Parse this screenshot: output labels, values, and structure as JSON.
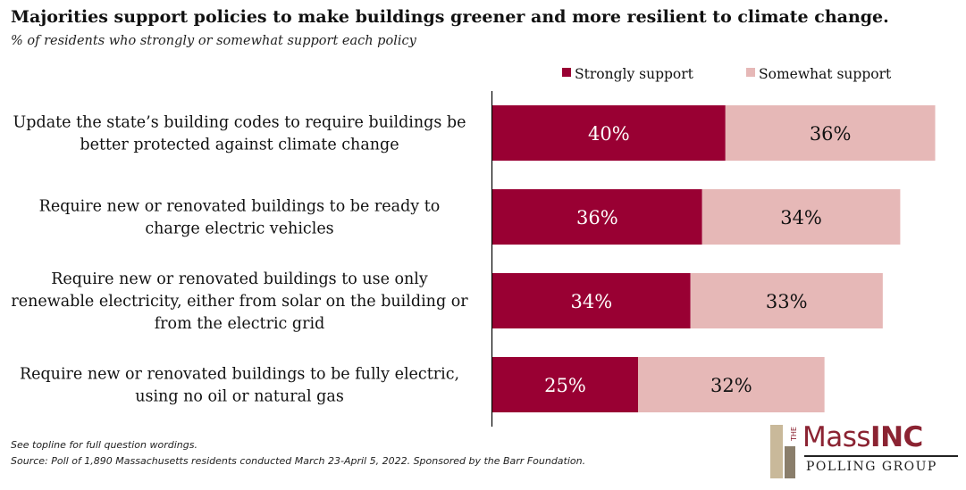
{
  "title": "Majorities support policies to make buildings greener and more resilient to climate change.",
  "subtitle": "% of residents who strongly or somewhat support each policy",
  "footnotes": [
    "See topline for full question wordings.",
    "Source: Poll of 1,890 Massachusetts residents conducted March 23-April 5, 2022. Sponsored by the Barr Foundation."
  ],
  "logo": {
    "the": "THE",
    "mass": "Mass",
    "inc": "INC",
    "polling": "POLLING GROUP"
  },
  "colors": {
    "strong": "#990033",
    "somewhat": "#e6b8b7",
    "axis": "#000000"
  },
  "chart_data": {
    "type": "bar",
    "orientation": "horizontal",
    "stacked": true,
    "title": "Majorities support policies to make buildings greener and more resilient to climate change.",
    "xlabel": "",
    "ylabel": "",
    "xlim": [
      0,
      80
    ],
    "legend_position": "top-right",
    "categories": [
      [
        "Update the state’s building codes to require buildings be",
        "better protected against climate change"
      ],
      [
        "Require new or renovated buildings to be ready to",
        "charge electric vehicles"
      ],
      [
        "Require new or renovated buildings to use only",
        "renewable electricity, either from solar on the building or",
        "from the electric grid"
      ],
      [
        "Require new or renovated buildings to be fully electric,",
        "using no oil or natural gas"
      ]
    ],
    "series": [
      {
        "name": "Strongly support",
        "values": [
          40,
          36,
          34,
          25
        ],
        "labels": [
          "40%",
          "36%",
          "34%",
          "25%"
        ]
      },
      {
        "name": "Somewhat support",
        "values": [
          36,
          34,
          33,
          32
        ],
        "labels": [
          "36%",
          "34%",
          "33%",
          "32%"
        ]
      }
    ]
  }
}
